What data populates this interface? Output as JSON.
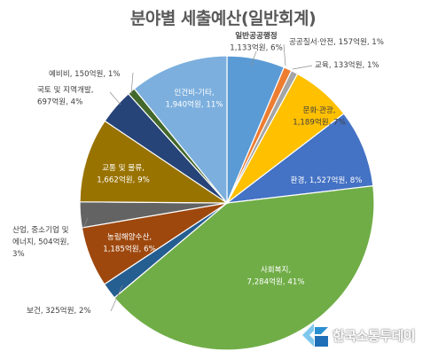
{
  "chart_data": {
    "type": "pie",
    "title": "분야별 세출예산(일반회계)",
    "slices": [
      {
        "name": "일반공공행정",
        "value_text": "1,133억원",
        "pct_text": "6%",
        "value": 1133,
        "color": "#5b9bd5"
      },
      {
        "name": "공공질서·안전",
        "value_text": "157억원",
        "pct_text": "1%",
        "value": 157,
        "color": "#ed7d31"
      },
      {
        "name": "교육",
        "value_text": "133억원",
        "pct_text": "1%",
        "value": 133,
        "color": "#a5a5a5"
      },
      {
        "name": "문화·관광",
        "value_text": "1,189억원",
        "pct_text": "7%",
        "value": 1189,
        "color": "#ffc000"
      },
      {
        "name": "환경",
        "value_text": "1,527억원",
        "pct_text": "8%",
        "value": 1527,
        "color": "#4472c4"
      },
      {
        "name": "사회복지",
        "value_text": "7,284억원",
        "pct_text": "41%",
        "value": 7284,
        "color": "#70ad47"
      },
      {
        "name": "보건",
        "value_text": "325억원",
        "pct_text": "2%",
        "value": 325,
        "color": "#255e91"
      },
      {
        "name": "농림해양수산",
        "value_text": "1,185억원",
        "pct_text": "6%",
        "value": 1185,
        "color": "#9e480e"
      },
      {
        "name": "산업, 중소기업 및 에너지",
        "value_text": "504억원",
        "pct_text": "3%",
        "value": 504,
        "color": "#636363"
      },
      {
        "name": "교통 및 물류",
        "value_text": "1,662억원",
        "pct_text": "9%",
        "value": 1662,
        "color": "#997300"
      },
      {
        "name": "국토 및 지역개발",
        "value_text": "697억원",
        "pct_text": "4%",
        "value": 697,
        "color": "#264478"
      },
      {
        "name": "예비비",
        "value_text": "150억원",
        "pct_text": "1%",
        "value": 150,
        "color": "#43682b"
      },
      {
        "name": "인건비-기타",
        "value_text": "1,940억원",
        "pct_text": "11%",
        "value": 1940,
        "color": "#7cafdd"
      }
    ]
  },
  "watermark": {
    "text": "한국소통투데이"
  }
}
